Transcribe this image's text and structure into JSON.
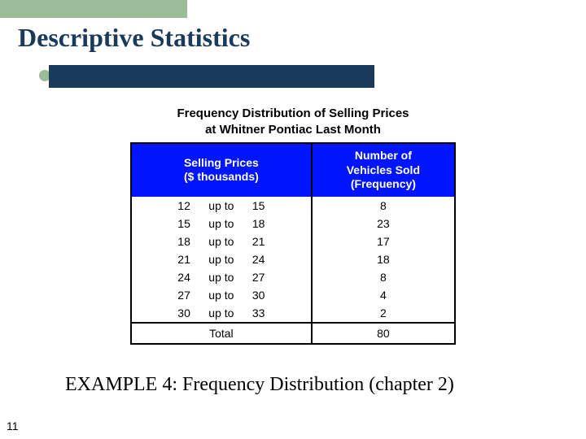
{
  "accent_block_color": "#9bbb99",
  "title_bar_color": "#1a3a5c",
  "table_header_bg": "#0015ff",
  "title": "Descriptive Statistics",
  "table_title_line1": "Frequency Distribution of Selling Prices",
  "table_title_line2": "at Whitner Pontiac Last Month",
  "header_col1_line1": "Selling Prices",
  "header_col1_line2": "($ thousands)",
  "header_col2_line1": "Number of",
  "header_col2_line2": "Vehicles Sold",
  "header_col2_line3": "(Frequency)",
  "connector": "up to",
  "rows": [
    {
      "low": "12",
      "high": "15",
      "freq": "8"
    },
    {
      "low": "15",
      "high": "18",
      "freq": "23"
    },
    {
      "low": "18",
      "high": "21",
      "freq": "17"
    },
    {
      "low": "21",
      "high": "24",
      "freq": "18"
    },
    {
      "low": "24",
      "high": "27",
      "freq": "8"
    },
    {
      "low": "27",
      "high": "30",
      "freq": "4"
    },
    {
      "low": "30",
      "high": "33",
      "freq": "2"
    }
  ],
  "total_label": "Total",
  "total_value": "80",
  "example_label": "EXAMPLE 4: Frequency Distribution (chapter 2)",
  "slide_number": "11"
}
